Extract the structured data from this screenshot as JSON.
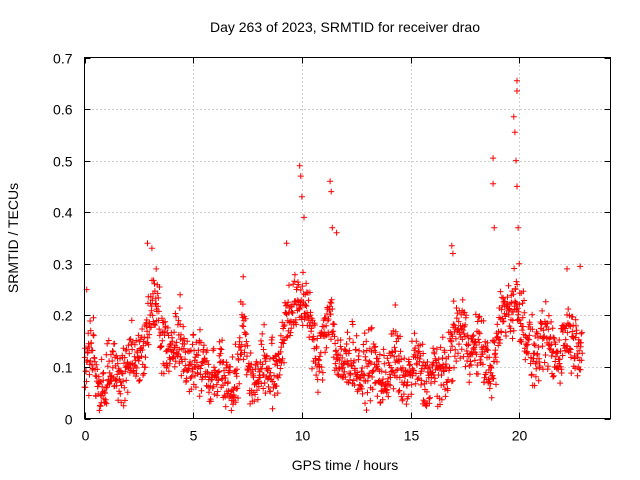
{
  "chart_data": {
    "type": "scatter",
    "title": "Day 263 of 2023, SRMTID for receiver drao",
    "xlabel": "GPS time / hours",
    "ylabel": "SRMTID / TECUs",
    "xlim": [
      0,
      24.2
    ],
    "ylim": [
      0,
      0.7
    ],
    "xticks": [
      0,
      5,
      10,
      15,
      20
    ],
    "yticks": [
      0,
      0.1,
      0.2,
      0.3,
      0.4,
      0.5,
      0.6,
      0.7
    ],
    "xtick_labels": [
      "0",
      "5",
      "10",
      "15",
      "20"
    ],
    "ytick_labels": [
      "0",
      "0.1",
      "0.2",
      "0.3",
      "0.4",
      "0.5",
      "0.6",
      "0.7"
    ],
    "grid": true,
    "marker": "+",
    "color": "#ff0000",
    "series": [
      {
        "name": "SRMTID",
        "profile_x": [
          0.0,
          0.3,
          0.6,
          1.0,
          1.5,
          2.0,
          2.5,
          2.9,
          3.2,
          3.6,
          4.0,
          4.5,
          5.0,
          5.5,
          6.0,
          6.5,
          7.0,
          7.3,
          7.6,
          8.0,
          8.5,
          9.0,
          9.4,
          9.7,
          10.0,
          10.3,
          10.7,
          11.0,
          11.3,
          11.6,
          12.0,
          12.5,
          13.0,
          13.5,
          14.0,
          14.5,
          15.0,
          15.5,
          16.0,
          16.4,
          16.8,
          17.2,
          17.6,
          18.0,
          18.5,
          18.9,
          19.2,
          19.5,
          19.8,
          20.0,
          20.3,
          20.7,
          21.0,
          21.5,
          22.0,
          22.5,
          22.9
        ],
        "profile_y": [
          0.09,
          0.12,
          0.07,
          0.07,
          0.09,
          0.11,
          0.12,
          0.2,
          0.22,
          0.16,
          0.13,
          0.14,
          0.1,
          0.1,
          0.09,
          0.08,
          0.09,
          0.16,
          0.1,
          0.08,
          0.09,
          0.12,
          0.2,
          0.24,
          0.22,
          0.2,
          0.12,
          0.15,
          0.2,
          0.13,
          0.1,
          0.11,
          0.09,
          0.09,
          0.09,
          0.1,
          0.08,
          0.1,
          0.08,
          0.07,
          0.14,
          0.15,
          0.17,
          0.13,
          0.11,
          0.12,
          0.18,
          0.22,
          0.25,
          0.2,
          0.15,
          0.14,
          0.13,
          0.14,
          0.14,
          0.16,
          0.17
        ],
        "peaks": [
          {
            "x": 0.1,
            "y": 0.25
          },
          {
            "x": 2.9,
            "y": 0.34
          },
          {
            "x": 3.1,
            "y": 0.33
          },
          {
            "x": 3.3,
            "y": 0.29
          },
          {
            "x": 4.4,
            "y": 0.24
          },
          {
            "x": 7.3,
            "y": 0.275
          },
          {
            "x": 9.3,
            "y": 0.34
          },
          {
            "x": 9.9,
            "y": 0.49
          },
          {
            "x": 9.95,
            "y": 0.47
          },
          {
            "x": 10.0,
            "y": 0.43
          },
          {
            "x": 10.1,
            "y": 0.39
          },
          {
            "x": 11.3,
            "y": 0.46
          },
          {
            "x": 11.35,
            "y": 0.44
          },
          {
            "x": 11.4,
            "y": 0.37
          },
          {
            "x": 11.6,
            "y": 0.36
          },
          {
            "x": 14.3,
            "y": 0.22
          },
          {
            "x": 16.9,
            "y": 0.335
          },
          {
            "x": 16.95,
            "y": 0.32
          },
          {
            "x": 17.4,
            "y": 0.23
          },
          {
            "x": 18.8,
            "y": 0.505
          },
          {
            "x": 18.8,
            "y": 0.455
          },
          {
            "x": 18.85,
            "y": 0.37
          },
          {
            "x": 19.75,
            "y": 0.585
          },
          {
            "x": 19.8,
            "y": 0.555
          },
          {
            "x": 19.9,
            "y": 0.655
          },
          {
            "x": 19.9,
            "y": 0.635
          },
          {
            "x": 19.85,
            "y": 0.5
          },
          {
            "x": 19.9,
            "y": 0.45
          },
          {
            "x": 19.95,
            "y": 0.37
          },
          {
            "x": 20.0,
            "y": 0.3
          },
          {
            "x": 22.2,
            "y": 0.29
          },
          {
            "x": 22.8,
            "y": 0.295
          }
        ],
        "n_points": 1600
      }
    ]
  }
}
